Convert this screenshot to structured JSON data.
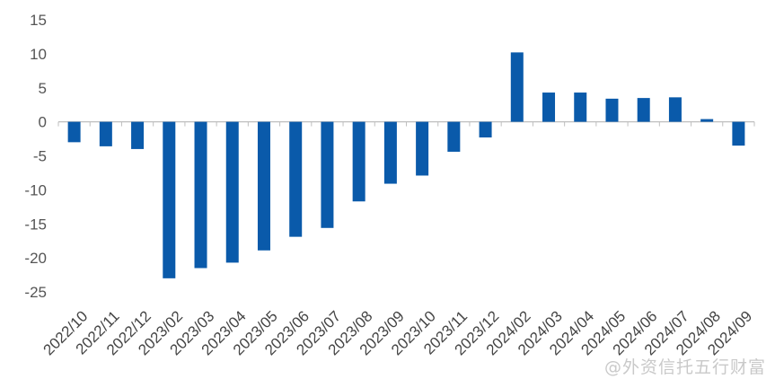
{
  "chart_data": {
    "type": "bar",
    "categories": [
      "2022/10",
      "2022/11",
      "2022/12",
      "2023/02",
      "2023/03",
      "2023/04",
      "2023/05",
      "2023/06",
      "2023/07",
      "2023/08",
      "2023/09",
      "2023/10",
      "2023/11",
      "2023/12",
      "2024/02",
      "2024/03",
      "2024/04",
      "2024/05",
      "2024/06",
      "2024/07",
      "2024/08",
      "2024/09"
    ],
    "values": [
      -3.0,
      -3.6,
      -4.0,
      -23.0,
      -21.5,
      -20.7,
      -18.9,
      -16.9,
      -15.6,
      -11.7,
      -9.1,
      -7.9,
      -4.4,
      -2.3,
      10.2,
      4.3,
      4.3,
      3.4,
      3.5,
      3.6,
      0.4,
      -3.5
    ],
    "title": "",
    "xlabel": "",
    "ylabel": "",
    "ylim": [
      -25,
      15
    ],
    "yticks": [
      15,
      10,
      5,
      0,
      -5,
      -10,
      -15,
      -20,
      -25
    ],
    "grid": false,
    "bar_color": "#0A5AAA",
    "axis_color": "#bfbfbf"
  },
  "watermark": "@外资信托五行财富"
}
